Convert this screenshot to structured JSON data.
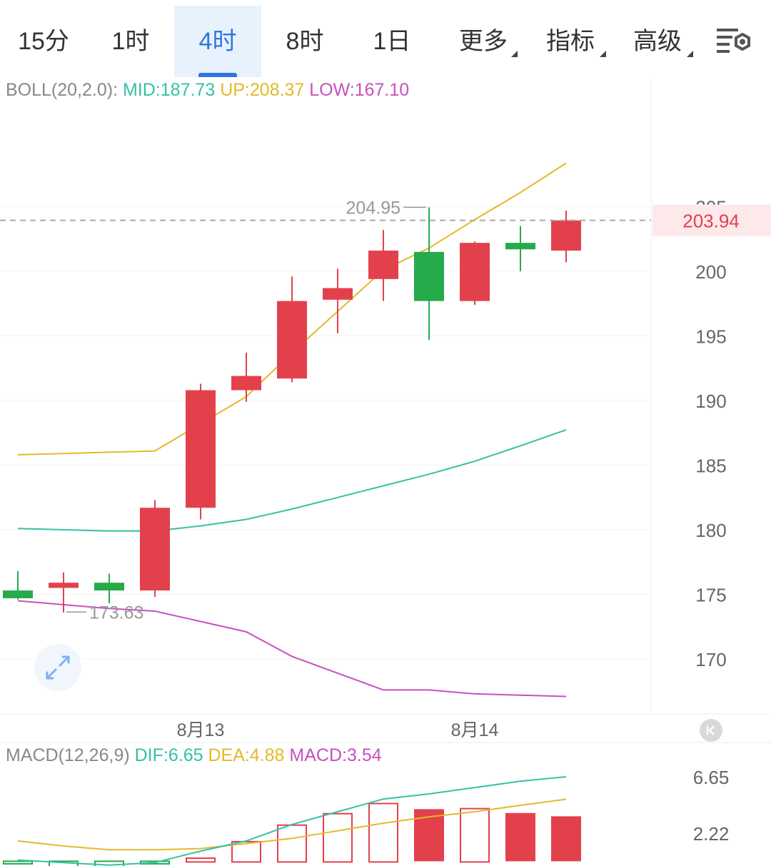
{
  "tabs": [
    {
      "label": "15分",
      "active": false
    },
    {
      "label": "1时",
      "active": false
    },
    {
      "label": "4时",
      "active": true
    },
    {
      "label": "8时",
      "active": false
    },
    {
      "label": "1日",
      "active": false
    },
    {
      "label": "更多",
      "active": false,
      "dropdown": true
    },
    {
      "label": "指标",
      "active": false,
      "dropdown": true
    },
    {
      "label": "高级",
      "active": false,
      "dropdown": true
    }
  ],
  "boll_legend": {
    "prefix": "BOLL(20,2.0): ",
    "mid": "MID:187.73",
    "up": "UP:208.37",
    "low": "LOW:167.10"
  },
  "macd_legend": {
    "prefix": "MACD(12,26,9) ",
    "dif": "DIF:6.65",
    "dea": "DEA:4.88",
    "macd": "MACD:3.54"
  },
  "colors": {
    "up_candle": "#e2414c",
    "down_candle": "#25ab4a",
    "mid_line": "#35c1a6",
    "upper_line": "#e3b92a",
    "lower_line": "#c94fbf",
    "axis_text": "#666666",
    "price_tag_text": "#e2414c",
    "price_tag_bg": "#fde8ea",
    "active_tab": "#2f77e0"
  },
  "icons": {
    "settings": "settings-gear-lines-icon",
    "expand": "expand-arrows-icon",
    "reset": "reset-to-latest-icon"
  },
  "chart_data": [
    {
      "type": "candlestick",
      "yaxis_ticks": [
        205,
        200,
        195,
        190,
        185,
        180,
        175,
        170
      ],
      "ylim": [
        166.5,
        210.5
      ],
      "x_labels": [
        {
          "index": 4,
          "label": "8月13"
        },
        {
          "index": 10,
          "label": "8月14"
        }
      ],
      "current_price": "203.94",
      "high_annotation": {
        "index": 9,
        "value": "204.95"
      },
      "low_annotation": {
        "index": 1,
        "value": "173.63"
      },
      "candles": [
        {
          "open": 175.3,
          "close": 174.7,
          "high": 176.8,
          "low": 174.6
        },
        {
          "open": 175.5,
          "close": 175.9,
          "high": 176.7,
          "low": 173.6
        },
        {
          "open": 175.9,
          "close": 175.3,
          "high": 176.6,
          "low": 174.3
        },
        {
          "open": 175.3,
          "close": 181.7,
          "high": 182.3,
          "low": 174.8
        },
        {
          "open": 181.7,
          "close": 190.8,
          "high": 191.3,
          "low": 180.8
        },
        {
          "open": 190.8,
          "close": 191.9,
          "high": 193.7,
          "low": 189.9
        },
        {
          "open": 191.7,
          "close": 197.7,
          "high": 199.6,
          "low": 191.4
        },
        {
          "open": 197.8,
          "close": 198.7,
          "high": 200.2,
          "low": 195.2
        },
        {
          "open": 199.4,
          "close": 201.6,
          "high": 203.2,
          "low": 197.7
        },
        {
          "open": 201.5,
          "close": 197.7,
          "high": 204.95,
          "low": 194.7
        },
        {
          "open": 197.7,
          "close": 202.2,
          "high": 202.3,
          "low": 197.4
        },
        {
          "open": 202.2,
          "close": 201.7,
          "high": 203.5,
          "low": 200.0
        },
        {
          "open": 201.6,
          "close": 203.94,
          "high": 204.7,
          "low": 200.7
        }
      ],
      "boll": {
        "upper": [
          185.8,
          185.9,
          186.0,
          186.1,
          188.2,
          190.3,
          193.7,
          196.9,
          200.1,
          201.8,
          204.0,
          206.1,
          208.37
        ],
        "mid": [
          180.1,
          180.0,
          179.9,
          179.9,
          180.3,
          180.8,
          181.6,
          182.5,
          183.4,
          184.3,
          185.3,
          186.5,
          187.73
        ],
        "lower": [
          174.5,
          174.2,
          173.9,
          173.7,
          172.9,
          172.1,
          170.2,
          168.9,
          167.6,
          167.6,
          167.3,
          167.2,
          167.1
        ]
      }
    },
    {
      "type": "macd",
      "yaxis_ticks": [
        6.65,
        2.22
      ],
      "ylim": [
        -0.3,
        8.6
      ],
      "dif": [
        0.1,
        -0.1,
        -0.3,
        -0.1,
        0.8,
        1.6,
        2.9,
        3.9,
        4.9,
        5.3,
        5.8,
        6.3,
        6.65
      ],
      "dea": [
        1.6,
        1.2,
        0.9,
        0.9,
        1.0,
        1.4,
        1.8,
        2.4,
        3.0,
        3.5,
        3.9,
        4.4,
        4.88
      ],
      "histogram": [
        -0.2,
        -0.5,
        -0.5,
        -0.2,
        0.3,
        1.6,
        2.9,
        3.8,
        4.6,
        4.1,
        4.2,
        3.8,
        3.54
      ]
    }
  ]
}
